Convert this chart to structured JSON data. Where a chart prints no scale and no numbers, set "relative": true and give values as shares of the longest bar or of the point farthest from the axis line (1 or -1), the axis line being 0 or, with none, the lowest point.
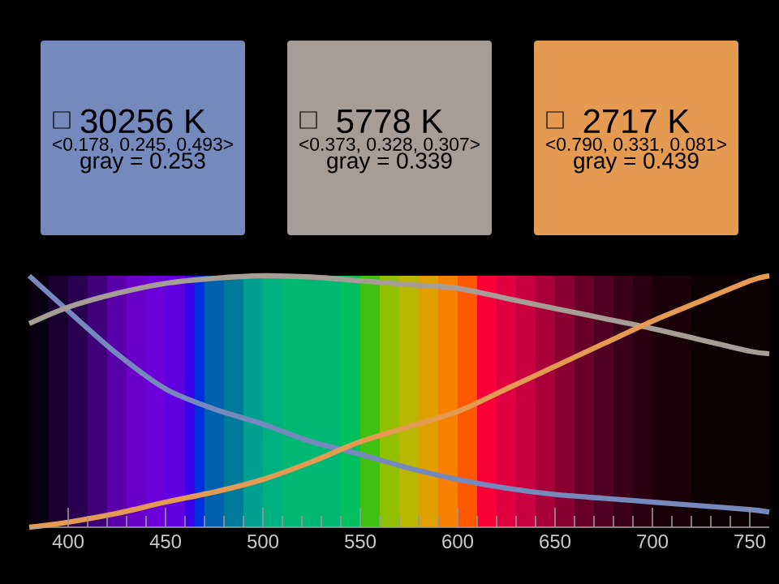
{
  "chart_data": {
    "type": "line",
    "relative": true,
    "legend": "top",
    "marker": "none",
    "line_style": "solid",
    "x": [
      380,
      400,
      425,
      450,
      475,
      500,
      525,
      550,
      575,
      600,
      625,
      650,
      675,
      700,
      725,
      750,
      760
    ],
    "xlim": [
      380,
      760
    ],
    "xticks": [
      400,
      450,
      500,
      550,
      600,
      650,
      700,
      750
    ],
    "series": [
      {
        "name": "30256 K",
        "color": "#7589bd",
        "values": [
          1.0,
          0.86,
          0.69,
          0.55,
          0.47,
          0.41,
          0.34,
          0.29,
          0.235,
          0.19,
          0.155,
          0.13,
          0.115,
          0.1,
          0.085,
          0.07,
          0.06
        ]
      },
      {
        "name": "5778 K",
        "color": "#a59d96",
        "values": [
          0.81,
          0.875,
          0.93,
          0.97,
          0.99,
          1.0,
          0.995,
          0.98,
          0.965,
          0.95,
          0.91,
          0.87,
          0.83,
          0.79,
          0.745,
          0.7,
          0.69
        ]
      },
      {
        "name": "2717 K",
        "color": "#e59a52",
        "values": [
          0,
          0.02,
          0.055,
          0.1,
          0.14,
          0.19,
          0.26,
          0.34,
          0.4,
          0.46,
          0.55,
          0.64,
          0.73,
          0.82,
          0.9,
          0.98,
          1.0
        ]
      }
    ],
    "annotations": [
      "<0.178, 0.245, 0.493>",
      "gray = 0.253",
      "<0.373, 0.328, 0.307>",
      "gray = 0.339",
      "<0.790, 0.331, 0.081>",
      "gray = 0.439"
    ],
    "bands": [
      {
        "axis": "x",
        "from": 380,
        "to": 390,
        "color": "#080010"
      },
      {
        "axis": "x",
        "from": 390,
        "to": 400,
        "color": "#1a0030"
      },
      {
        "axis": "x",
        "from": 400,
        "to": 410,
        "color": "#2a0050"
      },
      {
        "axis": "x",
        "from": 410,
        "to": 420,
        "color": "#40007a"
      },
      {
        "axis": "x",
        "from": 420,
        "to": 430,
        "color": "#5a00a8"
      },
      {
        "axis": "x",
        "from": 430,
        "to": 440,
        "color": "#6a00c8"
      },
      {
        "axis": "x",
        "from": 440,
        "to": 450,
        "color": "#6c00d8"
      },
      {
        "axis": "x",
        "from": 450,
        "to": 460,
        "color": "#6000e0"
      },
      {
        "axis": "x",
        "from": 460,
        "to": 465,
        "color": "#3a00e8"
      },
      {
        "axis": "x",
        "from": 465,
        "to": 470,
        "color": "#0030e0"
      },
      {
        "axis": "x",
        "from": 470,
        "to": 480,
        "color": "#0060b0"
      },
      {
        "axis": "x",
        "from": 480,
        "to": 490,
        "color": "#007a9a"
      },
      {
        "axis": "x",
        "from": 490,
        "to": 500,
        "color": "#00a090"
      },
      {
        "axis": "x",
        "from": 500,
        "to": 510,
        "color": "#00b080"
      },
      {
        "axis": "x",
        "from": 510,
        "to": 540,
        "color": "#00b874"
      },
      {
        "axis": "x",
        "from": 540,
        "to": 550,
        "color": "#00c060"
      },
      {
        "axis": "x",
        "from": 550,
        "to": 560,
        "color": "#40c010"
      },
      {
        "axis": "x",
        "from": 560,
        "to": 570,
        "color": "#90c000"
      },
      {
        "axis": "x",
        "from": 570,
        "to": 580,
        "color": "#b8b800"
      },
      {
        "axis": "x",
        "from": 580,
        "to": 590,
        "color": "#e0a000"
      },
      {
        "axis": "x",
        "from": 590,
        "to": 600,
        "color": "#f88000"
      },
      {
        "axis": "x",
        "from": 600,
        "to": 610,
        "color": "#ff5800"
      },
      {
        "axis": "x",
        "from": 610,
        "to": 620,
        "color": "#f80038"
      },
      {
        "axis": "x",
        "from": 620,
        "to": 630,
        "color": "#e00040"
      },
      {
        "axis": "x",
        "from": 630,
        "to": 640,
        "color": "#c80040"
      },
      {
        "axis": "x",
        "from": 640,
        "to": 650,
        "color": "#a80038"
      },
      {
        "axis": "x",
        "from": 650,
        "to": 660,
        "color": "#880030"
      },
      {
        "axis": "x",
        "from": 660,
        "to": 670,
        "color": "#680028"
      },
      {
        "axis": "x",
        "from": 670,
        "to": 680,
        "color": "#500020"
      },
      {
        "axis": "x",
        "from": 680,
        "to": 690,
        "color": "#3a0018"
      },
      {
        "axis": "x",
        "from": 690,
        "to": 700,
        "color": "#2a0010"
      },
      {
        "axis": "x",
        "from": 700,
        "to": 720,
        "color": "#1a0008"
      },
      {
        "axis": "x",
        "from": 720,
        "to": 760,
        "color": "#0c0002"
      }
    ]
  }
}
